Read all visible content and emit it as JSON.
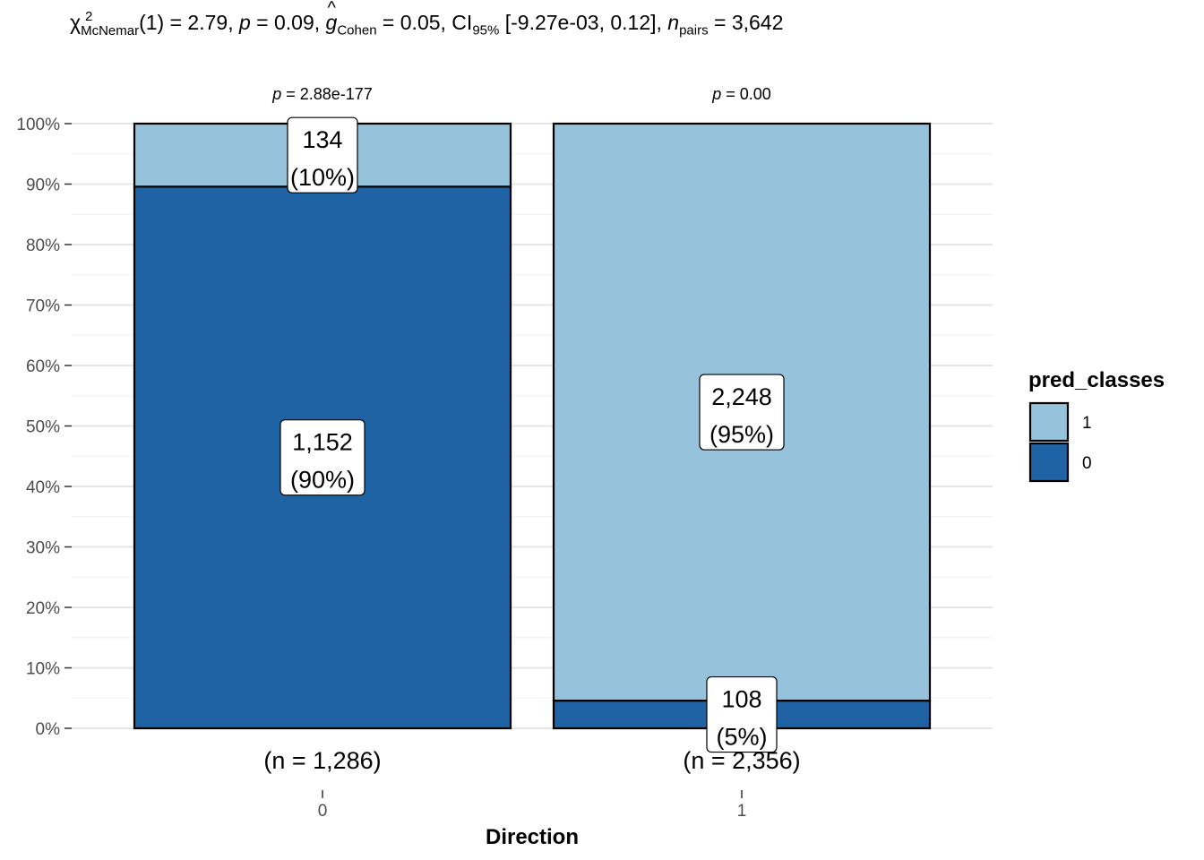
{
  "subtitle": {
    "stat_symbol": "χ",
    "stat_sup": "2",
    "stat_sub": "McNemar",
    "stat_df": "(1)",
    "stat_value": " = 2.79, ",
    "p_symbol": "p",
    "p_value": " = 0.09, ",
    "effect_symbol": "g",
    "effect_sub": "Cohen",
    "effect_value": " = 0.05, CI",
    "ci_sub": "95%",
    "ci_value": " [-9.27e-03, 0.12], ",
    "n_symbol": "n",
    "n_sub": "pairs",
    "n_value": " = 3,642"
  },
  "chart_data": {
    "type": "bar",
    "stacked": true,
    "normalized": true,
    "xlabel": "Direction",
    "ylabel": "",
    "ylim": [
      0,
      100
    ],
    "yticks": [
      "0%",
      "10%",
      "20%",
      "30%",
      "40%",
      "50%",
      "60%",
      "70%",
      "80%",
      "90%",
      "100%"
    ],
    "categories": [
      "0",
      "1"
    ],
    "series": [
      {
        "name": "0",
        "color": "#1F63A5",
        "counts": [
          1152,
          108
        ],
        "percents": [
          89.58,
          4.58
        ],
        "labels": [
          "1,152",
          "108"
        ],
        "pct_labels": [
          "(90%)",
          "(5%)"
        ]
      },
      {
        "name": "1",
        "color": "#97C2DB",
        "counts": [
          134,
          2248
        ],
        "percents": [
          10.42,
          95.42
        ],
        "labels": [
          "134",
          "2,248"
        ],
        "pct_labels": [
          "(10%)",
          "(95%)"
        ]
      }
    ],
    "top_labels": [
      "2.88e-177",
      "0.00"
    ],
    "top_label_prefix": "p",
    "totals": [
      "(n = 1,286)",
      "(n = 2,356)"
    ],
    "legend": {
      "title": "pred_classes",
      "position": "right",
      "entries": [
        "1",
        "0"
      ]
    },
    "grid": true
  }
}
